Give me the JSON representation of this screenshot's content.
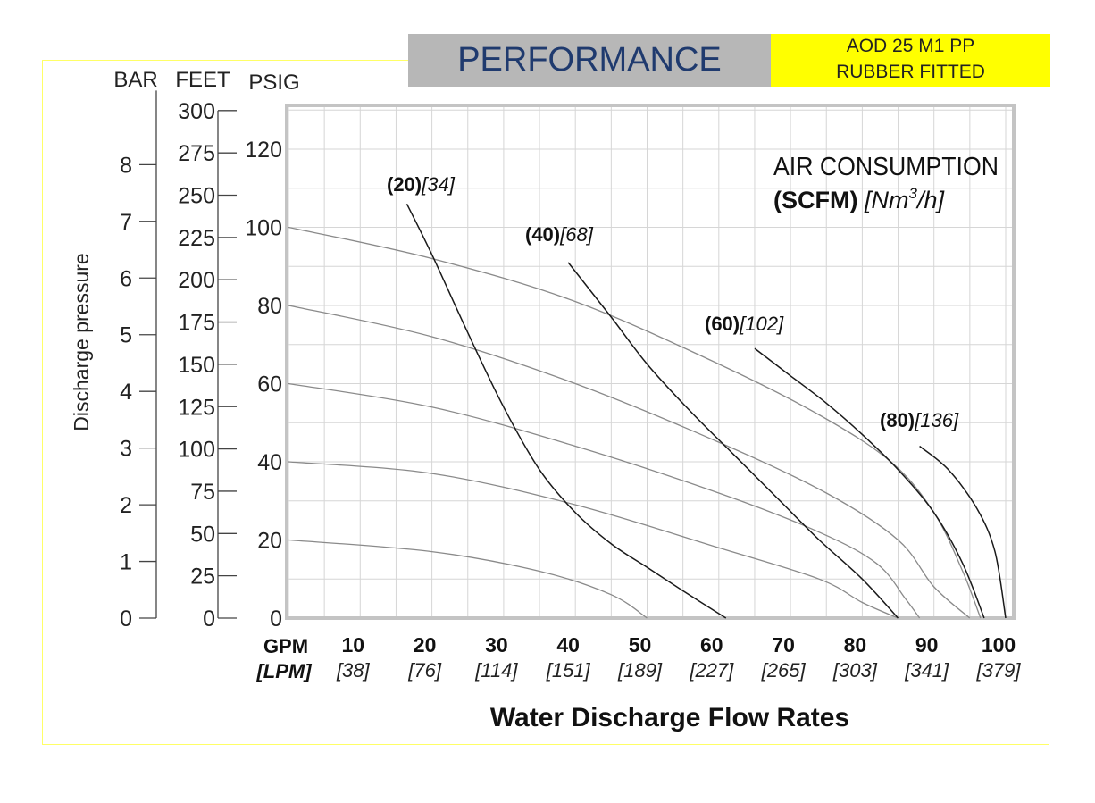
{
  "header": {
    "title": "PERFORMANCE",
    "model_line1": "AOD 25 M1 PP",
    "model_line2": "RUBBER FITTED"
  },
  "colors": {
    "header_gray": "#b7b7b7",
    "header_title": "#1f3a6e",
    "model_bg": "#ffff00",
    "frame": "#ffff66",
    "grid": "#d6d6d6",
    "plot_border": "#c4c4c4",
    "air_curve": "#1a1a1a",
    "pressure_curve": "#8a8a8a"
  },
  "chart_data": {
    "type": "line",
    "xlabel": "Water Discharge Flow Rates",
    "ylabel": "Discharge pressure",
    "x_unit_primary": "GPM",
    "x_unit_secondary": "[LPM]",
    "xlim": [
      0,
      100
    ],
    "ylim": [
      0,
      130
    ],
    "x_ticks": [
      {
        "gpm": "10",
        "lpm": "[38]"
      },
      {
        "gpm": "20",
        "lpm": "[76]"
      },
      {
        "gpm": "30",
        "lpm": "[114]"
      },
      {
        "gpm": "40",
        "lpm": "[151]"
      },
      {
        "gpm": "50",
        "lpm": "[189]"
      },
      {
        "gpm": "60",
        "lpm": "[227]"
      },
      {
        "gpm": "70",
        "lpm": "[265]"
      },
      {
        "gpm": "80",
        "lpm": "[303]"
      },
      {
        "gpm": "90",
        "lpm": "[341]"
      },
      {
        "gpm": "100",
        "lpm": "[379]"
      }
    ],
    "axes": {
      "psig": {
        "label": "PSIG",
        "ticks": [
          "0",
          "20",
          "40",
          "60",
          "80",
          "100",
          "120"
        ]
      },
      "feet": {
        "label": "FEET",
        "ticks": [
          "0",
          "25",
          "50",
          "75",
          "100",
          "125",
          "150",
          "175",
          "200",
          "225",
          "250",
          "275",
          "300"
        ]
      },
      "bar": {
        "label": "BAR",
        "ticks": [
          "0",
          "1",
          "2",
          "3",
          "4",
          "5",
          "6",
          "7",
          "8"
        ]
      }
    },
    "air_legend": {
      "line1": "AIR CONSUMPTION",
      "unit_bold": "(SCFM)",
      "unit_ital": "[Nm",
      "unit_sup": "3",
      "unit_tail": "/h]"
    },
    "pressure_series": [
      {
        "psig": 100,
        "points": [
          [
            0,
            100
          ],
          [
            20,
            92
          ],
          [
            40,
            81
          ],
          [
            60,
            65
          ],
          [
            74,
            52
          ],
          [
            84,
            40
          ],
          [
            90,
            27
          ],
          [
            94,
            12
          ],
          [
            96.5,
            0
          ]
        ]
      },
      {
        "psig": 80,
        "points": [
          [
            0,
            80
          ],
          [
            20,
            72
          ],
          [
            40,
            60
          ],
          [
            60,
            45
          ],
          [
            75,
            32
          ],
          [
            85,
            20
          ],
          [
            90,
            8
          ],
          [
            95,
            0
          ]
        ]
      },
      {
        "psig": 60,
        "points": [
          [
            0,
            60
          ],
          [
            20,
            54
          ],
          [
            40,
            44
          ],
          [
            60,
            32
          ],
          [
            74,
            22
          ],
          [
            82,
            14
          ],
          [
            86,
            5
          ],
          [
            88,
            0
          ]
        ]
      },
      {
        "psig": 40,
        "points": [
          [
            0,
            40
          ],
          [
            20,
            37
          ],
          [
            40,
            29
          ],
          [
            60,
            18
          ],
          [
            74,
            10
          ],
          [
            80,
            4
          ],
          [
            85,
            0
          ]
        ]
      },
      {
        "psig": 20,
        "points": [
          [
            0,
            20
          ],
          [
            20,
            17
          ],
          [
            35,
            12
          ],
          [
            45,
            6
          ],
          [
            50,
            0
          ]
        ]
      }
    ],
    "air_series": [
      {
        "label_bold": "(20)",
        "label_ital": "[34]",
        "points": [
          [
            16.5,
            106
          ],
          [
            20,
            93
          ],
          [
            25,
            73
          ],
          [
            30,
            54
          ],
          [
            35,
            38
          ],
          [
            40,
            27
          ],
          [
            45,
            19
          ],
          [
            50,
            13
          ],
          [
            55,
            7
          ],
          [
            61,
            0
          ]
        ]
      },
      {
        "label_bold": "(40)",
        "label_ital": "[68]",
        "points": [
          [
            39,
            91
          ],
          [
            45,
            77
          ],
          [
            50,
            65
          ],
          [
            56,
            53
          ],
          [
            62,
            42
          ],
          [
            68,
            31
          ],
          [
            74,
            20
          ],
          [
            80,
            10
          ],
          [
            85,
            0
          ]
        ]
      },
      {
        "label_bold": "(60)",
        "label_ital": "[102]",
        "points": [
          [
            65,
            69
          ],
          [
            70,
            62
          ],
          [
            75,
            55
          ],
          [
            80,
            47
          ],
          [
            85,
            38
          ],
          [
            90,
            27
          ],
          [
            94,
            14
          ],
          [
            97,
            0
          ]
        ]
      },
      {
        "label_bold": "(80)",
        "label_ital": "[136]",
        "points": [
          [
            88,
            44
          ],
          [
            92,
            38
          ],
          [
            96,
            28
          ],
          [
            98.5,
            17
          ],
          [
            100,
            0
          ]
        ]
      }
    ]
  }
}
